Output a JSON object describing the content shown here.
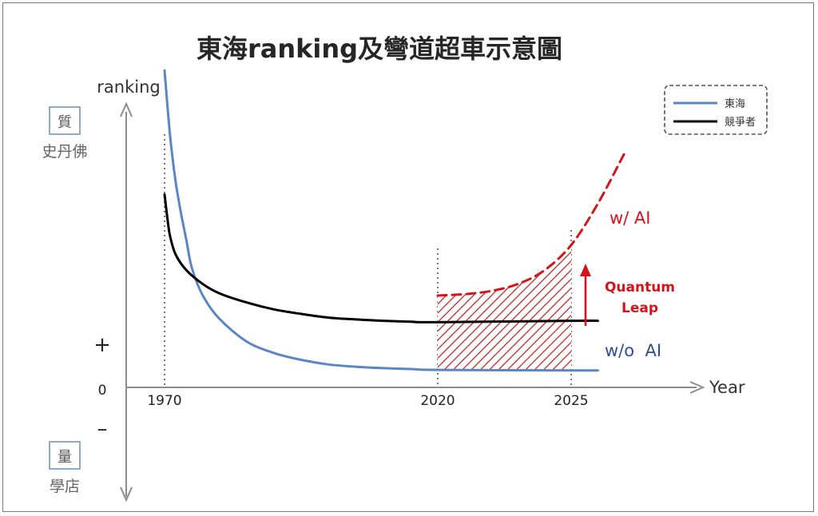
{
  "chart_data": {
    "type": "line",
    "title": "東海ranking及彎道超車示意圖",
    "ylabel": "ranking",
    "xlabel": "Year",
    "x_ticks": [
      "1970",
      "2020",
      "2025"
    ],
    "y_ticks": [
      "+",
      "0",
      "–"
    ],
    "y_top_box": "質",
    "y_top_note": "史丹佛",
    "y_bottom_box": "量",
    "y_bottom_note": "學店",
    "xlim": [
      1970,
      2030
    ],
    "series": [
      {
        "name": "東海",
        "color": "#5b86c4",
        "x": [
          1970,
          1971,
          1972,
          1973,
          1974,
          1975,
          1977,
          1980,
          1985,
          1990,
          1995,
          2000,
          2005,
          2010,
          2015,
          2020,
          2025,
          2026
        ],
        "y": [
          6.9,
          5.5,
          4.5,
          3.8,
          3.2,
          2.6,
          2.0,
          1.5,
          1.0,
          0.75,
          0.6,
          0.5,
          0.45,
          0.42,
          0.4,
          0.38,
          0.37,
          0.37
        ]
      },
      {
        "name": "競爭者",
        "color": "#000000",
        "x": [
          1970,
          1970.5,
          1971,
          1972,
          1974,
          1977,
          1980,
          1985,
          1990,
          1995,
          2000,
          2005,
          2010,
          2015,
          2020,
          2025,
          2026
        ],
        "y": [
          4.2,
          3.7,
          3.3,
          2.9,
          2.55,
          2.25,
          2.05,
          1.85,
          1.7,
          1.6,
          1.52,
          1.48,
          1.45,
          1.43,
          1.42,
          1.45,
          1.45
        ]
      },
      {
        "name": "w/ AI",
        "color": "#d4141a",
        "dashed": true,
        "x": [
          2020,
          2021,
          2022,
          2023,
          2024,
          2025,
          2026,
          2027
        ],
        "y": [
          2.0,
          2.03,
          2.1,
          2.25,
          2.55,
          3.1,
          4.0,
          5.1
        ]
      }
    ],
    "labels": {
      "with_ai": "w/ AI",
      "without_ai": "w/o  AI",
      "quantum_leap": [
        "Quantum",
        "Leap"
      ]
    },
    "legend": {
      "position": "top-right",
      "entries": [
        "東海",
        "競爭者"
      ]
    },
    "hatched_region": {
      "x_from": 2020,
      "x_to": 2025,
      "color": "#c0181c"
    }
  }
}
